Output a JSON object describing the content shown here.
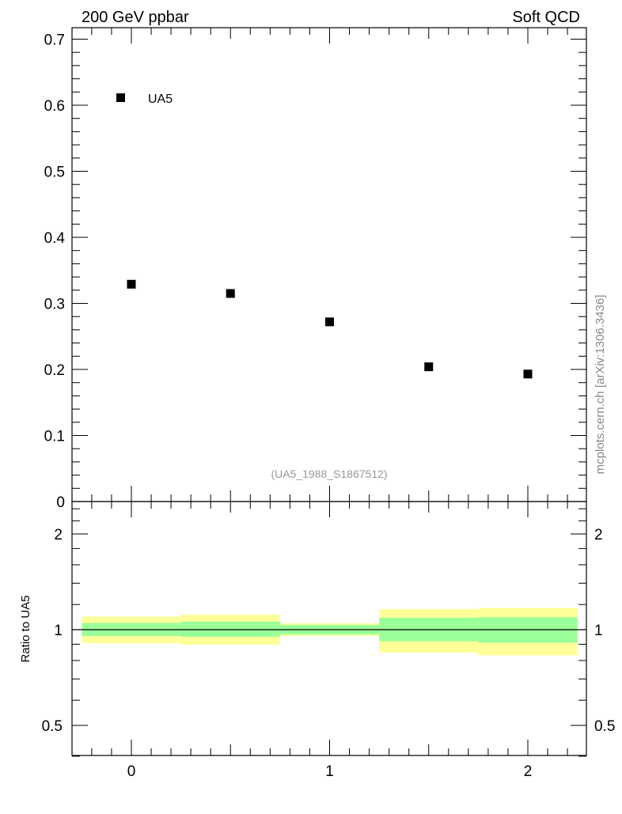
{
  "chart_data": [
    {
      "type": "scatter",
      "title_left": "200 GeV ppbar",
      "title_right": "Soft QCD",
      "side_label": "mcplots.cern.ch [arXiv:1306.3436]",
      "analysis_label": "(UA5_1988_S1867512)",
      "xlim": [
        -0.3,
        2.3
      ],
      "ylim": [
        0,
        0.72
      ],
      "yticks": [
        "0",
        "0.1",
        "0.2",
        "0.3",
        "0.4",
        "0.5",
        "0.6",
        "0.7"
      ],
      "legend": [
        {
          "name": "UA5",
          "marker": "square",
          "color": "#000000"
        }
      ],
      "legend_placement": "top-left",
      "series": [
        {
          "name": "UA5",
          "x": [
            0,
            0.5,
            1,
            1.5,
            2
          ],
          "y": [
            0.329,
            0.315,
            0.272,
            0.204,
            0.193
          ]
        }
      ]
    },
    {
      "type": "area",
      "ylabel": "Ratio to UA5",
      "yscale": "log",
      "ylim": [
        0.4,
        2.5
      ],
      "yticks": [
        "0.5",
        "1",
        "2"
      ],
      "xticks": [
        "0",
        "1",
        "2"
      ],
      "bins": [
        [
          -0.25,
          0.25
        ],
        [
          0.25,
          0.75
        ],
        [
          0.75,
          1.25
        ],
        [
          1.25,
          1.75
        ],
        [
          1.75,
          2.25
        ]
      ],
      "yellow_band": {
        "color": "#ffff99",
        "low": [
          0.907,
          0.897,
          0.955,
          0.847,
          0.83
        ],
        "high": [
          1.1,
          1.115,
          1.047,
          1.16,
          1.17
        ]
      },
      "green_band": {
        "color": "#99ff99",
        "low": [
          0.955,
          0.95,
          0.966,
          0.92,
          0.91
        ],
        "high": [
          1.05,
          1.06,
          1.035,
          1.09,
          1.095
        ]
      },
      "reference_line": 1
    }
  ]
}
